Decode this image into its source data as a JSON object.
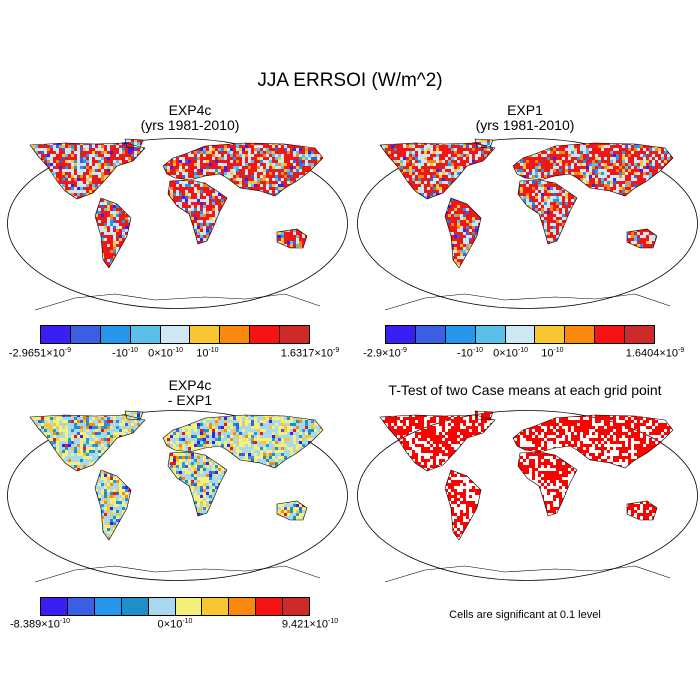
{
  "title": "JJA ERRSOI (W/m^2)",
  "panels": [
    {
      "title1": "EXP4c",
      "title2": "(yrs 1981-2010)"
    },
    {
      "title1": "EXP1",
      "title2": "(yrs 1981-2010)"
    },
    {
      "title1": "EXP4c",
      "title2": "- EXP1"
    },
    {
      "title1": "T-Test of two Case means at each grid point",
      "title2": ""
    }
  ],
  "colorbars": [
    {
      "colors": [
        "#3b1ff2",
        "#3a5fe3",
        "#2596ec",
        "#5bbfea",
        "#cde8f3",
        "#f7c631",
        "#f9880f",
        "#f51313",
        "#cf2a2a"
      ],
      "ticks": [
        {
          "base": "-2.9651×10",
          "exp": "-9",
          "pos": 0
        },
        {
          "base": "-10",
          "exp": "-10",
          "pos": 0.315
        },
        {
          "base": "0×10",
          "exp": "-10",
          "pos": 0.465
        },
        {
          "base": "10",
          "exp": "-10",
          "pos": 0.62
        },
        {
          "base": "1.6317×10",
          "exp": "-9",
          "pos": 1
        }
      ]
    },
    {
      "colors": [
        "#3b1ff2",
        "#3a5fe3",
        "#2596ec",
        "#5bbfea",
        "#cde8f3",
        "#f7c631",
        "#f9880f",
        "#f51313",
        "#cf2a2a"
      ],
      "ticks": [
        {
          "base": "-2.9×10",
          "exp": "-9",
          "pos": 0
        },
        {
          "base": "-10",
          "exp": "-10",
          "pos": 0.315
        },
        {
          "base": "0×10",
          "exp": "-10",
          "pos": 0.465
        },
        {
          "base": "10",
          "exp": "-10",
          "pos": 0.62
        },
        {
          "base": "1.6404×10",
          "exp": "-9",
          "pos": 1
        }
      ]
    },
    {
      "colors": [
        "#3b1ff2",
        "#3a5fe3",
        "#2596ec",
        "#1e8fc8",
        "#a8d8ee",
        "#f5f07a",
        "#f7c631",
        "#f9880f",
        "#f51313",
        "#cf2a2a"
      ],
      "ticks": [
        {
          "base": "-8.389×10",
          "exp": "-10",
          "pos": 0
        },
        {
          "base": "0×10",
          "exp": "-10",
          "pos": 0.5
        },
        {
          "base": "9.421×10",
          "exp": "-10",
          "pos": 1
        }
      ]
    }
  ],
  "note": "Cells are significant at 0.1 level"
}
